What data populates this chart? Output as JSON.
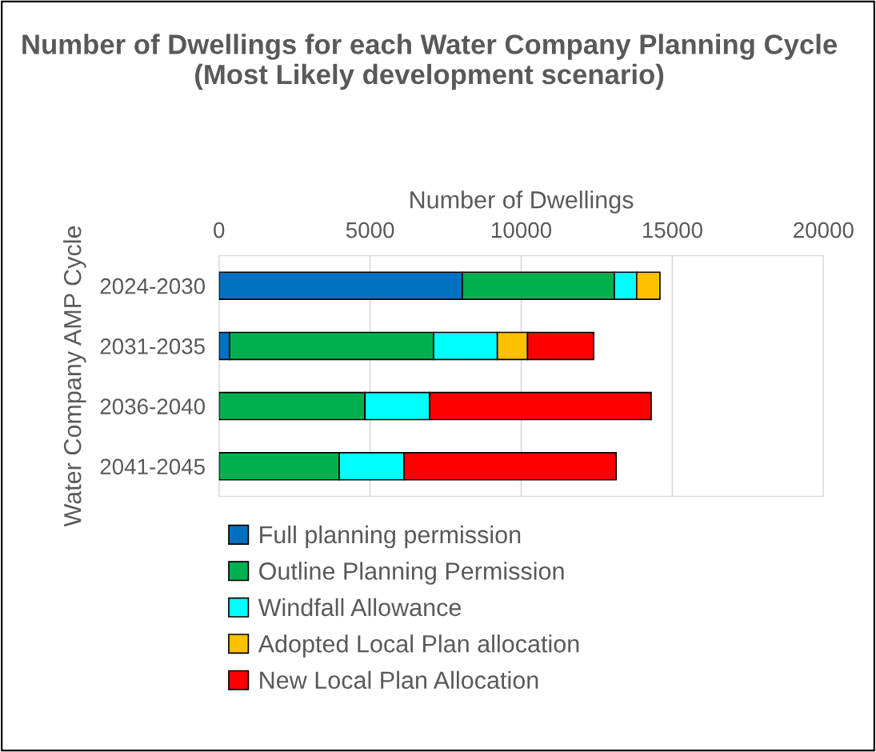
{
  "chart_data": {
    "type": "bar",
    "orientation": "horizontal",
    "stacked": true,
    "title": "Number of Dwellings for each Water Company Planning Cycle (Most Likely development scenario)",
    "xlabel": "Number of Dwellings",
    "ylabel": "Water Company AMP Cycle",
    "categories": [
      "2024-2030",
      "2031-2035",
      "2036-2040",
      "2041-2045"
    ],
    "series": [
      {
        "name": "Full planning permission",
        "color": "#0070c0",
        "values": [
          8050,
          350,
          null,
          null
        ]
      },
      {
        "name": "Outline Planning Permission",
        "color": "#00b050",
        "values": [
          5030,
          6750,
          4830,
          3980
        ]
      },
      {
        "name": "Windfall Allowance",
        "color": "#00ffff",
        "values": [
          740,
          2110,
          2140,
          2140
        ]
      },
      {
        "name": "Adopted Local Plan allocation",
        "color": "#ffc000",
        "values": [
          770,
          1000,
          null,
          null
        ]
      },
      {
        "name": "New Local Plan Allocation",
        "color": "#ff0000",
        "values": [
          null,
          2190,
          7330,
          7020
        ]
      }
    ],
    "xlim": [
      0,
      20000
    ],
    "xticks": [
      0,
      5000,
      10000,
      15000,
      20000
    ],
    "grid": "x",
    "legend": "bottom"
  }
}
